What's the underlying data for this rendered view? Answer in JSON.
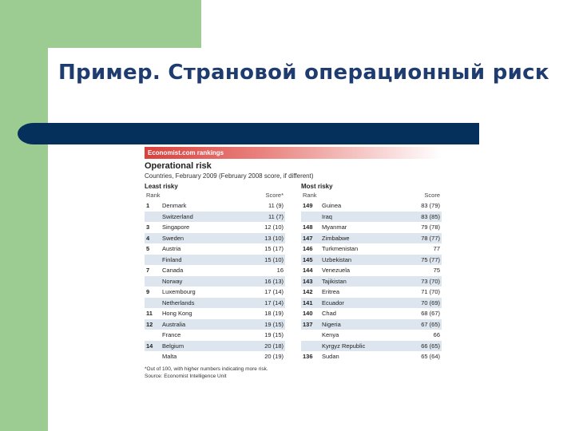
{
  "slide": {
    "title": "Пример. Страновой операционный риск"
  },
  "figure": {
    "brand": "Economist.com rankings",
    "title": "Operational risk",
    "subtitle": "Countries, February 2009 (February 2008 score, if different)",
    "least": {
      "heading": "Least risky",
      "rank_label": "Rank",
      "score_label": "Score*",
      "rows": [
        {
          "rank": "1",
          "country": "Denmark",
          "score": "11 (9)"
        },
        {
          "rank": "",
          "country": "Switzerland",
          "score": "11 (7)"
        },
        {
          "rank": "3",
          "country": "Singapore",
          "score": "12 (10)"
        },
        {
          "rank": "4",
          "country": "Sweden",
          "score": "13 (10)"
        },
        {
          "rank": "5",
          "country": "Austria",
          "score": "15 (17)"
        },
        {
          "rank": "",
          "country": "Finland",
          "score": "15 (10)"
        },
        {
          "rank": "7",
          "country": "Canada",
          "score": "16"
        },
        {
          "rank": "",
          "country": "Norway",
          "score": "16 (13)"
        },
        {
          "rank": "9",
          "country": "Luxembourg",
          "score": "17 (14)"
        },
        {
          "rank": "",
          "country": "Netherlands",
          "score": "17 (14)"
        },
        {
          "rank": "11",
          "country": "Hong Kong",
          "score": "18 (19)"
        },
        {
          "rank": "12",
          "country": "Australia",
          "score": "19 (15)"
        },
        {
          "rank": "",
          "country": "France",
          "score": "19 (15)"
        },
        {
          "rank": "14",
          "country": "Belgium",
          "score": "20 (18)"
        },
        {
          "rank": "",
          "country": "Malta",
          "score": "20 (19)"
        }
      ]
    },
    "most": {
      "heading": "Most risky",
      "rank_label": "Rank",
      "score_label": "Score",
      "rows": [
        {
          "rank": "149",
          "country": "Guinea",
          "score": "83 (79)"
        },
        {
          "rank": "",
          "country": "Iraq",
          "score": "83 (85)"
        },
        {
          "rank": "148",
          "country": "Myanmar",
          "score": "79 (78)"
        },
        {
          "rank": "147",
          "country": "Zimbabwe",
          "score": "78 (77)"
        },
        {
          "rank": "146",
          "country": "Turkmenistan",
          "score": "77"
        },
        {
          "rank": "145",
          "country": "Uzbekistan",
          "score": "75 (77)"
        },
        {
          "rank": "144",
          "country": "Venezuela",
          "score": "75"
        },
        {
          "rank": "143",
          "country": "Tajikistan",
          "score": "73 (70)"
        },
        {
          "rank": "142",
          "country": "Eritrea",
          "score": "71 (70)"
        },
        {
          "rank": "141",
          "country": "Ecuador",
          "score": "70 (69)"
        },
        {
          "rank": "140",
          "country": "Chad",
          "score": "68 (67)"
        },
        {
          "rank": "137",
          "country": "Nigeria",
          "score": "67 (65)"
        },
        {
          "rank": "",
          "country": "Kenya",
          "score": "66"
        },
        {
          "rank": "",
          "country": "Kyrgyz Republic",
          "score": "66 (65)"
        },
        {
          "rank": "136",
          "country": "Sudan",
          "score": "65 (64)"
        }
      ]
    },
    "footnote": "*Out of 100, with higher numbers indicating more risk.",
    "source": "Source: Economist Intelligence Unit"
  },
  "colors": {
    "green": "#9dcc93",
    "navy": "#06305c",
    "title": "#1f3c70",
    "brand_red": "#d9403e",
    "row_shade": "#dde6ee"
  }
}
